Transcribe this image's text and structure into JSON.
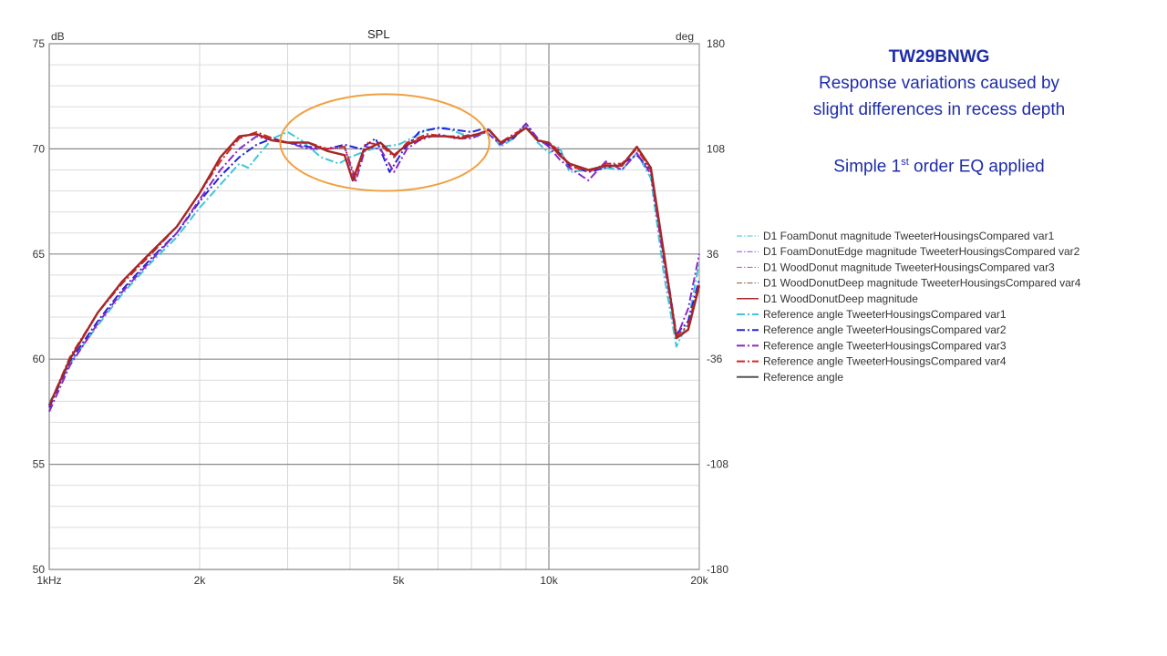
{
  "notes": {
    "heading": "TW29BNWG",
    "line1": "Response variations caused by",
    "line2": "slight differences in recess depth",
    "eq_prefix": "Simple 1",
    "eq_sup": "st",
    "eq_suffix": " order EQ applied"
  },
  "chart_data": {
    "type": "line",
    "title": "SPL",
    "ylabel": "dB",
    "y2label": "deg",
    "xscale": "log",
    "xlim": [
      1000,
      20000
    ],
    "ylim": [
      50,
      75
    ],
    "y2lim": [
      -180,
      180
    ],
    "x_ticks": [
      {
        "value": 1000,
        "label": "1kHz"
      },
      {
        "value": 2000,
        "label": "2k"
      },
      {
        "value": 5000,
        "label": "5k"
      },
      {
        "value": 10000,
        "label": "10k"
      },
      {
        "value": 20000,
        "label": "20k"
      }
    ],
    "y_ticks": [
      {
        "value": 50,
        "label": "50"
      },
      {
        "value": 55,
        "label": "55"
      },
      {
        "value": 60,
        "label": "60"
      },
      {
        "value": 65,
        "label": "65"
      },
      {
        "value": 70,
        "label": "70"
      },
      {
        "value": 75,
        "label": "75"
      }
    ],
    "y2_ticks": [
      {
        "value": -180,
        "label": "-180"
      },
      {
        "value": -108,
        "label": "-108"
      },
      {
        "value": -36,
        "label": "-36"
      },
      {
        "value": 36,
        "label": "36"
      },
      {
        "value": 108,
        "label": "108"
      },
      {
        "value": 180,
        "label": "180"
      }
    ],
    "grid": true,
    "legend_position": "right",
    "highlight": {
      "shape": "ellipse",
      "color": "#f0a040",
      "x_range": [
        2900,
        7600
      ],
      "y_range": [
        68.0,
        72.6
      ]
    },
    "series": [
      {
        "name": "D1 FoamDonut magnitude TweeterHousingsCompared var1",
        "color": "#3fc6d8",
        "dash": "dashdot",
        "width": 1,
        "points": []
      },
      {
        "name": "D1 FoamDonutEdge magnitude TweeterHousingsCompared var2",
        "color": "#a040e0",
        "dash": "dashdot",
        "width": 1,
        "points": []
      },
      {
        "name": "D1 WoodDonut magnitude TweeterHousingsCompared var3",
        "color": "#e040c8",
        "dash": "dashdot",
        "width": 1,
        "points": []
      },
      {
        "name": "D1 WoodDonutDeep magnitude TweeterHousingsCompared var4",
        "color": "#8b5a3c",
        "dash": "dashdot",
        "width": 1,
        "points": []
      },
      {
        "name": "D1 WoodDonutDeep magnitude",
        "color": "#a52828",
        "dash": "solid",
        "width": 1.5,
        "points": []
      },
      {
        "name": "Reference angle TweeterHousingsCompared var1",
        "color": "#3fc6d8",
        "dash": "dashdot",
        "width": 2,
        "points": [
          [
            1000,
            57.9
          ],
          [
            1100,
            59.8
          ],
          [
            1250,
            61.6
          ],
          [
            1400,
            63.1
          ],
          [
            1600,
            64.6
          ],
          [
            1800,
            65.8
          ],
          [
            2000,
            67.2
          ],
          [
            2200,
            68.3
          ],
          [
            2400,
            69.3
          ],
          [
            2500,
            69.1
          ],
          [
            2600,
            69.6
          ],
          [
            2800,
            70.5
          ],
          [
            3000,
            70.8
          ],
          [
            3200,
            70.4
          ],
          [
            3500,
            69.6
          ],
          [
            3800,
            69.3
          ],
          [
            4000,
            69.6
          ],
          [
            4300,
            69.9
          ],
          [
            4600,
            70.1
          ],
          [
            5000,
            70.2
          ],
          [
            5300,
            70.5
          ],
          [
            5700,
            70.9
          ],
          [
            6200,
            71.0
          ],
          [
            6700,
            70.7
          ],
          [
            7200,
            70.6
          ],
          [
            7600,
            70.9
          ],
          [
            8000,
            70.1
          ],
          [
            8500,
            70.5
          ],
          [
            9000,
            71.1
          ],
          [
            9500,
            70.3
          ],
          [
            10000,
            69.8
          ],
          [
            10500,
            70.1
          ],
          [
            11000,
            68.9
          ],
          [
            12000,
            69.0
          ],
          [
            13000,
            69.1
          ],
          [
            14000,
            69.0
          ],
          [
            15000,
            69.8
          ],
          [
            16000,
            68.6
          ],
          [
            17000,
            64.0
          ],
          [
            18000,
            60.6
          ],
          [
            19000,
            61.8
          ],
          [
            20000,
            64.6
          ]
        ]
      },
      {
        "name": "Reference angle TweeterHousingsCompared var2",
        "color": "#2525d8",
        "dash": "dashdot",
        "width": 2,
        "points": [
          [
            1000,
            57.7
          ],
          [
            1100,
            59.9
          ],
          [
            1250,
            61.8
          ],
          [
            1400,
            63.3
          ],
          [
            1600,
            64.8
          ],
          [
            1800,
            66.0
          ],
          [
            2000,
            67.5
          ],
          [
            2200,
            68.7
          ],
          [
            2400,
            69.6
          ],
          [
            2600,
            70.2
          ],
          [
            2800,
            70.5
          ],
          [
            3000,
            70.3
          ],
          [
            3300,
            70.1
          ],
          [
            3600,
            70.0
          ],
          [
            3900,
            70.2
          ],
          [
            4200,
            70.0
          ],
          [
            4500,
            70.5
          ],
          [
            4800,
            68.9
          ],
          [
            5100,
            69.9
          ],
          [
            5500,
            70.8
          ],
          [
            6000,
            71.0
          ],
          [
            6500,
            70.9
          ],
          [
            7000,
            70.8
          ],
          [
            7500,
            71.0
          ],
          [
            8000,
            70.3
          ],
          [
            8500,
            70.5
          ],
          [
            9000,
            71.2
          ],
          [
            9500,
            70.4
          ],
          [
            10000,
            70.2
          ],
          [
            10500,
            69.8
          ],
          [
            11000,
            69.2
          ],
          [
            12000,
            68.9
          ],
          [
            13000,
            69.1
          ],
          [
            14000,
            69.3
          ],
          [
            15000,
            69.7
          ],
          [
            16000,
            69.0
          ],
          [
            17000,
            65.0
          ],
          [
            18000,
            61.2
          ],
          [
            19000,
            61.8
          ],
          [
            20000,
            63.8
          ]
        ]
      },
      {
        "name": "Reference angle TweeterHousingsCompared var3",
        "color": "#8a28c8",
        "dash": "dashdot",
        "width": 2,
        "points": [
          [
            1000,
            57.5
          ],
          [
            1100,
            59.7
          ],
          [
            1250,
            61.7
          ],
          [
            1400,
            63.2
          ],
          [
            1600,
            64.7
          ],
          [
            1800,
            66.0
          ],
          [
            2000,
            67.6
          ],
          [
            2200,
            69.0
          ],
          [
            2400,
            70.0
          ],
          [
            2600,
            70.6
          ],
          [
            2800,
            70.4
          ],
          [
            3000,
            70.3
          ],
          [
            3300,
            70.0
          ],
          [
            3600,
            70.0
          ],
          [
            3900,
            70.1
          ],
          [
            4100,
            68.4
          ],
          [
            4300,
            70.1
          ],
          [
            4600,
            70.0
          ],
          [
            4900,
            68.9
          ],
          [
            5200,
            70.0
          ],
          [
            5500,
            70.4
          ],
          [
            6000,
            70.7
          ],
          [
            6500,
            70.5
          ],
          [
            7000,
            70.5
          ],
          [
            7500,
            70.8
          ],
          [
            8000,
            70.2
          ],
          [
            8500,
            70.6
          ],
          [
            9000,
            71.2
          ],
          [
            9500,
            70.5
          ],
          [
            10000,
            70.1
          ],
          [
            10500,
            69.5
          ],
          [
            11000,
            69.1
          ],
          [
            12000,
            68.5
          ],
          [
            13000,
            69.4
          ],
          [
            14000,
            69.0
          ],
          [
            15000,
            69.8
          ],
          [
            16000,
            68.8
          ],
          [
            17000,
            64.6
          ],
          [
            18000,
            61.0
          ],
          [
            19000,
            62.4
          ],
          [
            20000,
            65.0
          ]
        ]
      },
      {
        "name": "Reference angle TweeterHousingsCompared var4",
        "color": "#d02828",
        "dash": "dashdot",
        "width": 2,
        "points": [
          [
            1000,
            57.8
          ],
          [
            1100,
            60.1
          ],
          [
            1250,
            62.2
          ],
          [
            1400,
            63.6
          ],
          [
            1600,
            65.0
          ],
          [
            1800,
            66.3
          ],
          [
            2000,
            67.9
          ],
          [
            2200,
            69.4
          ],
          [
            2400,
            70.5
          ],
          [
            2600,
            70.8
          ],
          [
            2800,
            70.5
          ],
          [
            3000,
            70.3
          ],
          [
            3300,
            70.3
          ],
          [
            3600,
            70.0
          ],
          [
            3900,
            70.1
          ],
          [
            4100,
            68.6
          ],
          [
            4300,
            70.3
          ],
          [
            4600,
            70.2
          ],
          [
            4900,
            69.6
          ],
          [
            5200,
            70.3
          ],
          [
            5700,
            70.7
          ],
          [
            6200,
            70.6
          ],
          [
            6700,
            70.6
          ],
          [
            7200,
            70.7
          ],
          [
            7600,
            70.9
          ],
          [
            8000,
            70.3
          ],
          [
            8500,
            70.7
          ],
          [
            9000,
            71.0
          ],
          [
            9500,
            70.4
          ],
          [
            10000,
            70.3
          ],
          [
            10500,
            69.9
          ],
          [
            11000,
            69.2
          ],
          [
            12000,
            68.9
          ],
          [
            13000,
            69.3
          ],
          [
            14000,
            69.3
          ],
          [
            15000,
            70.0
          ],
          [
            16000,
            69.0
          ],
          [
            17000,
            64.8
          ],
          [
            18000,
            61.1
          ],
          [
            19000,
            61.6
          ],
          [
            20000,
            63.6
          ]
        ]
      },
      {
        "name": "Reference angle",
        "color": "#555555",
        "dash": "solid",
        "width": 2,
        "points": []
      },
      {
        "name": "",
        "legend": false,
        "color": "#a52828",
        "dash": "solid",
        "width": 2.4,
        "points": [
          [
            1000,
            57.8
          ],
          [
            1100,
            60.0
          ],
          [
            1250,
            62.2
          ],
          [
            1400,
            63.7
          ],
          [
            1600,
            65.1
          ],
          [
            1800,
            66.3
          ],
          [
            2000,
            67.9
          ],
          [
            2200,
            69.6
          ],
          [
            2400,
            70.6
          ],
          [
            2600,
            70.7
          ],
          [
            2800,
            70.4
          ],
          [
            3000,
            70.3
          ],
          [
            3300,
            70.3
          ],
          [
            3600,
            69.9
          ],
          [
            3900,
            69.7
          ],
          [
            4050,
            68.5
          ],
          [
            4250,
            69.9
          ],
          [
            4600,
            70.3
          ],
          [
            4900,
            69.7
          ],
          [
            5200,
            70.2
          ],
          [
            5700,
            70.6
          ],
          [
            6200,
            70.6
          ],
          [
            6700,
            70.5
          ],
          [
            7200,
            70.7
          ],
          [
            7600,
            70.9
          ],
          [
            8000,
            70.3
          ],
          [
            8500,
            70.6
          ],
          [
            9000,
            71.0
          ],
          [
            9500,
            70.4
          ],
          [
            10000,
            70.3
          ],
          [
            10500,
            69.7
          ],
          [
            11000,
            69.3
          ],
          [
            12000,
            69.0
          ],
          [
            13000,
            69.2
          ],
          [
            14000,
            69.2
          ],
          [
            15000,
            70.1
          ],
          [
            16000,
            69.1
          ],
          [
            17000,
            65.0
          ],
          [
            18000,
            61.0
          ],
          [
            19000,
            61.4
          ],
          [
            20000,
            63.5
          ]
        ]
      }
    ]
  }
}
